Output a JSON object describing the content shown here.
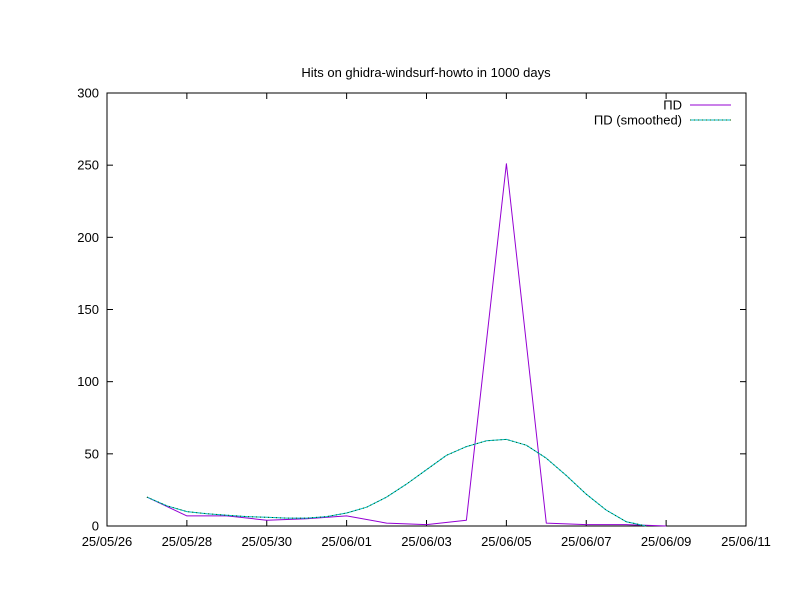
{
  "chart_data": {
    "type": "line",
    "title": "Hits on ghidra-windsurf-howto in 1000 days",
    "xlabel": "",
    "ylabel": "",
    "x_axis": {
      "type": "date",
      "range": [
        "25/05/26",
        "25/06/11"
      ],
      "ticks": [
        "25/05/26",
        "25/05/28",
        "25/05/30",
        "25/06/01",
        "25/06/03",
        "25/06/05",
        "25/06/07",
        "25/06/09",
        "25/06/11"
      ]
    },
    "y_axis": {
      "range": [
        0,
        300
      ],
      "ticks": [
        0,
        50,
        100,
        150,
        200,
        250,
        300
      ]
    },
    "grid": false,
    "legend_position": "top-right",
    "series": [
      {
        "name": "ΠD",
        "color": "#9400d3",
        "points": [
          [
            "25/05/27",
            20
          ],
          [
            "25/05/28",
            7
          ],
          [
            "25/05/29",
            7
          ],
          [
            "25/05/30",
            4
          ],
          [
            "25/05/31",
            5
          ],
          [
            "25/06/01",
            7
          ],
          [
            "25/06/02",
            2
          ],
          [
            "25/06/03",
            1
          ],
          [
            "25/06/04",
            4
          ],
          [
            "25/06/05",
            251
          ],
          [
            "25/06/06",
            2
          ],
          [
            "25/06/07",
            1
          ],
          [
            "25/06/08",
            1
          ],
          [
            "25/06/09",
            0
          ]
        ]
      },
      {
        "name": "ΠD (smoothed)",
        "color": "#00b7c3",
        "style": "dotted-over-solid",
        "points": [
          [
            "25/05/27",
            20
          ],
          [
            "25/05/27.5",
            14
          ],
          [
            "25/05/28",
            10
          ],
          [
            "25/05/28.5",
            8.5
          ],
          [
            "25/05/29",
            7.5
          ],
          [
            "25/05/29.5",
            6.5
          ],
          [
            "25/05/30",
            6
          ],
          [
            "25/05/30.5",
            5.5
          ],
          [
            "25/05/31",
            5.5
          ],
          [
            "25/05/31.5",
            6.5
          ],
          [
            "25/06/01",
            9
          ],
          [
            "25/06/01.5",
            13
          ],
          [
            "25/06/02",
            20
          ],
          [
            "25/06/02.5",
            29
          ],
          [
            "25/06/03",
            39
          ],
          [
            "25/06/03.5",
            49
          ],
          [
            "25/06/04",
            55
          ],
          [
            "25/06/04.5",
            59
          ],
          [
            "25/06/05",
            60
          ],
          [
            "25/06/05.5",
            56
          ],
          [
            "25/06/06",
            47
          ],
          [
            "25/06/06.5",
            35
          ],
          [
            "25/06/07",
            22
          ],
          [
            "25/06/07.5",
            11
          ],
          [
            "25/06/08",
            3
          ],
          [
            "25/06/08.5",
            0
          ]
        ]
      }
    ]
  }
}
